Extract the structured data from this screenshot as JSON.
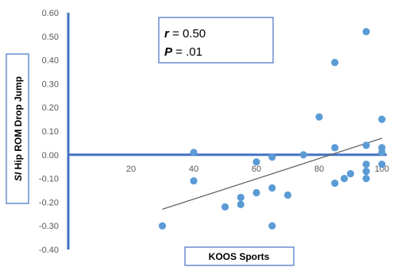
{
  "chart_data": {
    "type": "scatter",
    "xlabel": "KOOS Sports",
    "ylabel_italic": "SI",
    "ylabel_rest": " Hip ROM Drop Jump",
    "xlim": [
      0,
      100
    ],
    "ylim": [
      -0.4,
      0.6
    ],
    "x_ticks": [
      20,
      40,
      60,
      80,
      100
    ],
    "y_ticks": [
      "0.60",
      "0.50",
      "0.40",
      "0.30",
      "0.20",
      "0.10",
      "0.00",
      "-0.10",
      "-0.20",
      "-0.30",
      "-0.40"
    ],
    "annotation": {
      "r_label": "r",
      "r_value": " = 0.50",
      "p_label": "P",
      "p_value": " = .01"
    },
    "trendline": {
      "x": [
        30,
        100
      ],
      "y": [
        -0.23,
        0.07
      ]
    },
    "points": [
      {
        "x": 30,
        "y": -0.3
      },
      {
        "x": 40,
        "y": 0.01
      },
      {
        "x": 40,
        "y": -0.11
      },
      {
        "x": 50,
        "y": -0.22
      },
      {
        "x": 55,
        "y": -0.18
      },
      {
        "x": 55,
        "y": -0.21
      },
      {
        "x": 60,
        "y": -0.16
      },
      {
        "x": 60,
        "y": -0.03
      },
      {
        "x": 65,
        "y": -0.14
      },
      {
        "x": 65,
        "y": -0.01
      },
      {
        "x": 65,
        "y": -0.3
      },
      {
        "x": 70,
        "y": -0.17
      },
      {
        "x": 75,
        "y": 0.0
      },
      {
        "x": 80,
        "y": 0.16
      },
      {
        "x": 85,
        "y": 0.39
      },
      {
        "x": 85,
        "y": 0.03
      },
      {
        "x": 85,
        "y": -0.12
      },
      {
        "x": 88,
        "y": -0.1
      },
      {
        "x": 90,
        "y": -0.08
      },
      {
        "x": 95,
        "y": 0.52
      },
      {
        "x": 95,
        "y": 0.04
      },
      {
        "x": 95,
        "y": -0.04
      },
      {
        "x": 95,
        "y": -0.07
      },
      {
        "x": 95,
        "y": -0.1
      },
      {
        "x": 100,
        "y": 0.15
      },
      {
        "x": 100,
        "y": 0.03
      },
      {
        "x": 100,
        "y": 0.01
      },
      {
        "x": 100,
        "y": -0.04
      }
    ],
    "colors": {
      "axis": "#4472c4",
      "point": "#5b9bd5",
      "trend": "#595959",
      "box_border": "#4472c4"
    }
  }
}
